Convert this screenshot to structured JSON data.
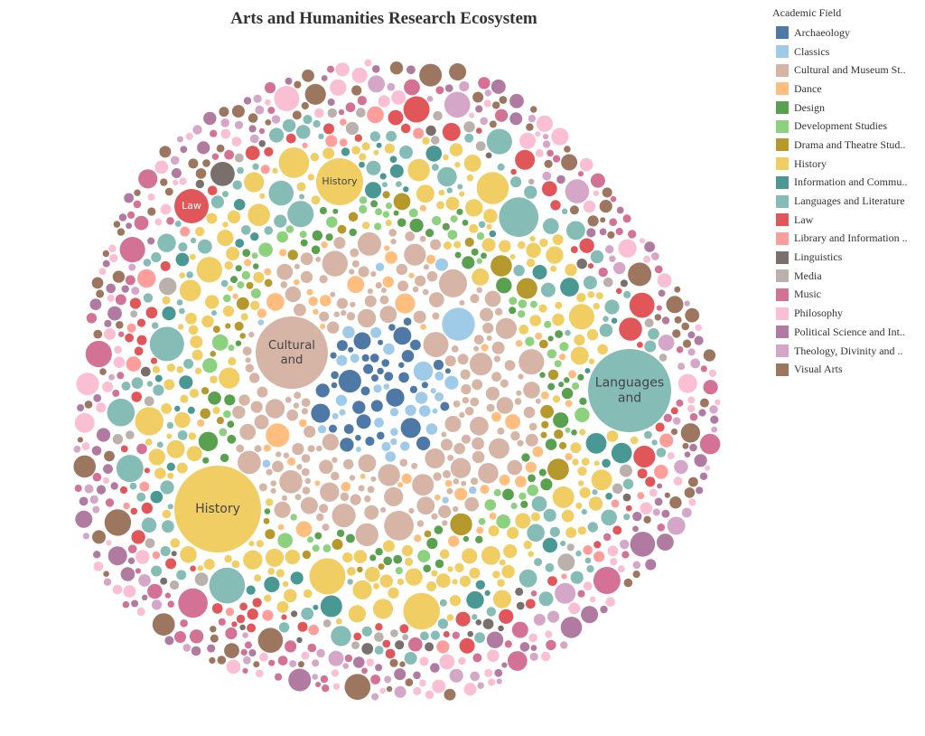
{
  "chart_data": {
    "type": "packed-bubble",
    "title": "Arts and Humanities Research Ecosystem",
    "legend_title": "Academic Field",
    "legend_position": "top-right",
    "categories": [
      {
        "name": "Archaeology",
        "color": "#4e79a7"
      },
      {
        "name": "Classics",
        "color": "#a0cbe8"
      },
      {
        "name": "Cultural and Museum St..",
        "color": "#d7b5a6"
      },
      {
        "name": "Dance",
        "color": "#ffbe7d"
      },
      {
        "name": "Design",
        "color": "#59a14f"
      },
      {
        "name": "Development Studies",
        "color": "#8cd17d"
      },
      {
        "name": "Drama and Theatre Stud..",
        "color": "#b6992d"
      },
      {
        "name": "History",
        "color": "#f1ce63"
      },
      {
        "name": "Information and Commu..",
        "color": "#499894"
      },
      {
        "name": "Languages and Literature",
        "color": "#86bcb6"
      },
      {
        "name": "Law",
        "color": "#e15759"
      },
      {
        "name": "Library and Information ..",
        "color": "#ff9d9a"
      },
      {
        "name": "Linguistics",
        "color": "#79706e"
      },
      {
        "name": "Media",
        "color": "#bab0ac"
      },
      {
        "name": "Music",
        "color": "#d37295"
      },
      {
        "name": "Philosophy",
        "color": "#fabfd2"
      },
      {
        "name": "Political Science and Int..",
        "color": "#b07aa1"
      },
      {
        "name": "Theology, Divinity and ..",
        "color": "#d4a6c8"
      },
      {
        "name": "Visual Arts",
        "color": "#9d7660"
      }
    ],
    "labeled_bubbles": [
      {
        "category": "History",
        "lines": [
          "History"
        ],
        "size": 48
      },
      {
        "category": "History",
        "lines": [
          "History"
        ],
        "size": 26
      },
      {
        "category": "Cultural and Museum St..",
        "lines": [
          "Cultural",
          "and"
        ],
        "size": 40
      },
      {
        "category": "Languages and Literature",
        "lines": [
          "Languages",
          "and"
        ],
        "size": 46
      },
      {
        "category": "Law",
        "lines": [
          "Law"
        ],
        "size": 19
      }
    ]
  }
}
